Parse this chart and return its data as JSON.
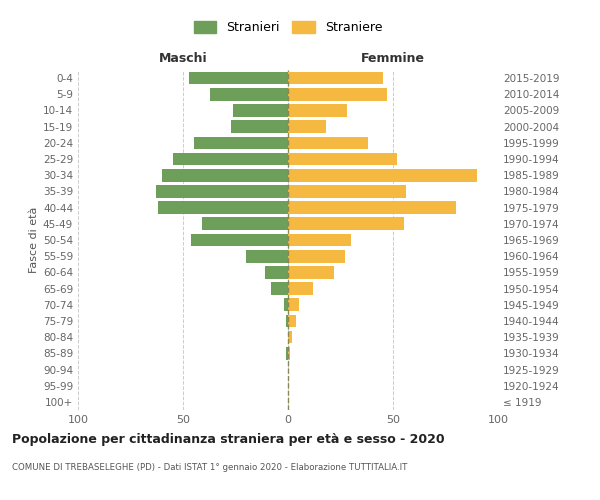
{
  "age_groups": [
    "100+",
    "95-99",
    "90-94",
    "85-89",
    "80-84",
    "75-79",
    "70-74",
    "65-69",
    "60-64",
    "55-59",
    "50-54",
    "45-49",
    "40-44",
    "35-39",
    "30-34",
    "25-29",
    "20-24",
    "15-19",
    "10-14",
    "5-9",
    "0-4"
  ],
  "birth_years": [
    "≤ 1919",
    "1920-1924",
    "1925-1929",
    "1930-1934",
    "1935-1939",
    "1940-1944",
    "1945-1949",
    "1950-1954",
    "1955-1959",
    "1960-1964",
    "1965-1969",
    "1970-1974",
    "1975-1979",
    "1980-1984",
    "1985-1989",
    "1990-1994",
    "1995-1999",
    "2000-2004",
    "2005-2009",
    "2010-2014",
    "2015-2019"
  ],
  "males": [
    0,
    0,
    0,
    1,
    0,
    1,
    2,
    8,
    11,
    20,
    46,
    41,
    62,
    63,
    60,
    55,
    45,
    27,
    26,
    37,
    47
  ],
  "females": [
    0,
    0,
    0,
    1,
    2,
    4,
    5,
    12,
    22,
    27,
    30,
    55,
    80,
    56,
    90,
    52,
    38,
    18,
    28,
    47,
    45
  ],
  "male_color": "#6d9e5a",
  "female_color": "#f5b942",
  "title": "Popolazione per cittadinanza straniera per età e sesso - 2020",
  "subtitle": "COMUNE DI TREBASELEGHE (PD) - Dati ISTAT 1° gennaio 2020 - Elaborazione TUTTITALIA.IT",
  "ylabel_left": "Fasce di età",
  "legend_male": "Stranieri",
  "legend_female": "Straniere",
  "xlim": 100,
  "background_color": "#ffffff",
  "grid_color": "#cccccc",
  "maschi_label": "Maschi",
  "femmine_label": "Femmine"
}
